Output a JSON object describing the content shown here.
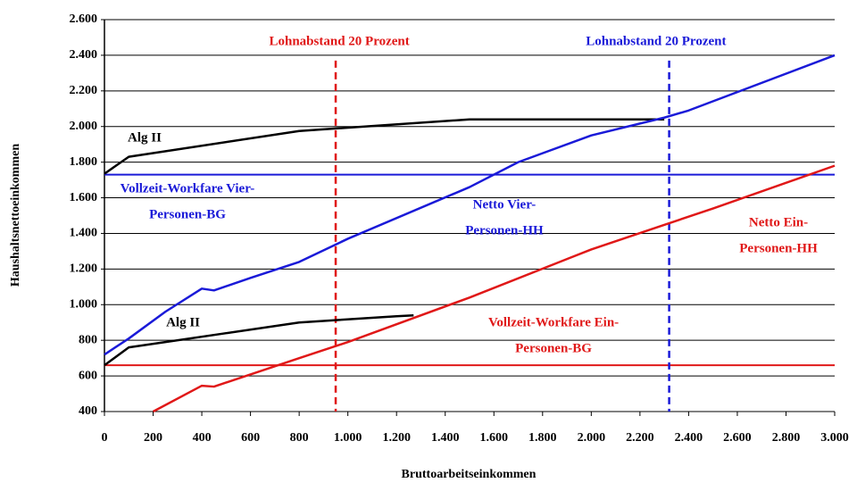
{
  "chart_data": {
    "type": "line",
    "xlabel": "Bruttoarbeitseinkommen",
    "ylabel": "Haushaltsnettoeinkommen",
    "xlim": [
      0,
      3000
    ],
    "ylim": [
      400,
      2600
    ],
    "xticks": [
      0,
      200,
      400,
      600,
      800,
      {
        "value": 1000,
        "label": "1.000"
      },
      {
        "value": 1200,
        "label": "1.200"
      },
      {
        "value": 1400,
        "label": "1.400"
      },
      {
        "value": 1600,
        "label": "1.600"
      },
      {
        "value": 1800,
        "label": "1.800"
      },
      {
        "value": 2000,
        "label": "2.000"
      },
      {
        "value": 2200,
        "label": "2.200"
      },
      {
        "value": 2400,
        "label": "2.400"
      },
      {
        "value": 2600,
        "label": "2.600"
      },
      {
        "value": 2800,
        "label": "2.800"
      },
      {
        "value": 3000,
        "label": "3.000"
      }
    ],
    "yticks": [
      400,
      600,
      800,
      {
        "value": 1000,
        "label": "1.000"
      },
      {
        "value": 1200,
        "label": "1.200"
      },
      {
        "value": 1400,
        "label": "1.400"
      },
      {
        "value": 1600,
        "label": "1.600"
      },
      {
        "value": 1800,
        "label": "1.800"
      },
      {
        "value": 2000,
        "label": "2.000"
      },
      {
        "value": 2200,
        "label": "2.200"
      },
      {
        "value": 2400,
        "label": "2.400"
      },
      {
        "value": 2600,
        "label": "2.600"
      }
    ],
    "grid": true,
    "series": [
      {
        "color": "#000000",
        "x": [
          0,
          100,
          800,
          1500,
          2300
        ],
        "values": [
          1735,
          1830,
          1975,
          2040,
          2040
        ]
      },
      {
        "color": "#1a1ad8",
        "x": [
          0,
          100,
          250,
          400,
          450,
          600,
          800,
          1000,
          1500,
          1700,
          2000,
          2300,
          2400,
          3000
        ],
        "values": [
          720,
          810,
          960,
          1090,
          1080,
          1150,
          1240,
          1370,
          1660,
          1800,
          1950,
          2050,
          2090,
          2400
        ]
      },
      {
        "color": "#000000",
        "x": [
          0,
          100,
          500,
          800,
          1200,
          1270
        ],
        "values": [
          660,
          760,
          840,
          900,
          935,
          940
        ]
      },
      {
        "color": "#e01818",
        "x": [
          200,
          400,
          450,
          800,
          1000,
          1500,
          2000,
          2500,
          3000
        ],
        "values": [
          400,
          545,
          540,
          700,
          790,
          1040,
          1310,
          1540,
          1780
        ]
      }
    ],
    "reference_lines": [
      {
        "axis": "y",
        "value": 1730,
        "color": "#1a1ad8",
        "dashed": false
      },
      {
        "axis": "y",
        "value": 660,
        "color": "#e01818",
        "dashed": false
      },
      {
        "axis": "x",
        "value": 950,
        "ymax": 2370,
        "color": "#e01818",
        "dashed": true
      },
      {
        "axis": "x",
        "value": 2320,
        "ymax": 2370,
        "color": "#1a1ad8",
        "dashed": true
      }
    ],
    "annotations": [
      {
        "lines": [
          "Lohnabstand 20 Prozent"
        ],
        "x": 965,
        "y": 2475,
        "color": "#e01818"
      },
      {
        "lines": [
          "Lohnabstand 20 Prozent"
        ],
        "x": 2266,
        "y": 2475,
        "color": "#1a1ad8"
      },
      {
        "lines": [
          "Alg II"
        ],
        "x": 165,
        "y": 1933,
        "color": "#000000"
      },
      {
        "lines": [
          "Vollzeit-Workfare Vier-",
          "Personen-BG"
        ],
        "x": 341,
        "y": 1648,
        "color": "#1a1ad8"
      },
      {
        "lines": [
          "Netto Vier-",
          "Personen-HH"
        ],
        "x": 1643,
        "y": 1558,
        "color": "#1a1ad8"
      },
      {
        "lines": [
          "Netto Ein-",
          "Personen-HH"
        ],
        "x": 2769,
        "y": 1457,
        "color": "#e01818"
      },
      {
        "lines": [
          "Alg II"
        ],
        "x": 323,
        "y": 896,
        "color": "#000000"
      },
      {
        "lines": [
          "Vollzeit-Workfare Ein-",
          "Personen-BG"
        ],
        "x": 1845,
        "y": 896,
        "color": "#e01818"
      }
    ]
  }
}
